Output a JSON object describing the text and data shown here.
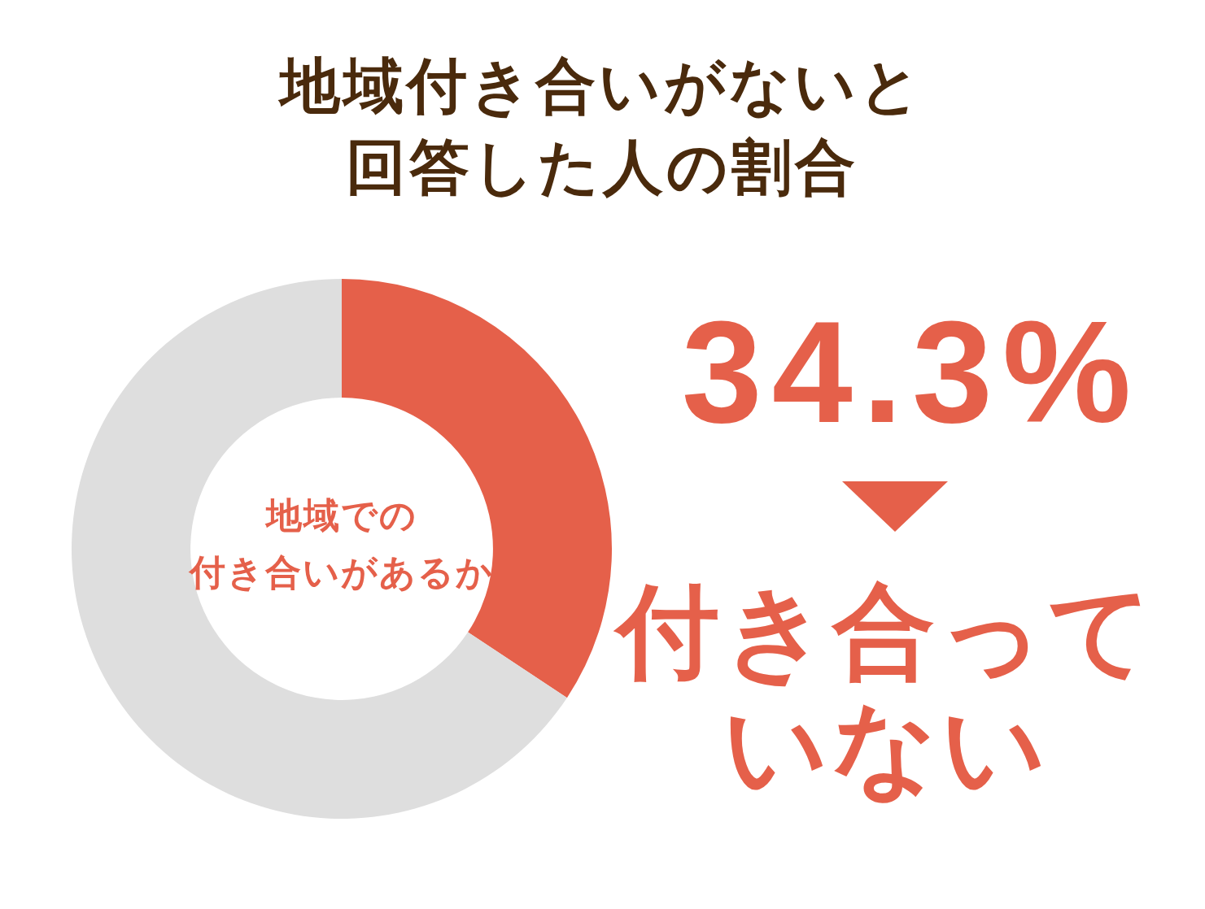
{
  "chart_data": {
    "type": "donut",
    "title": "地域付き合いがないと回答した人の割合",
    "categories": [
      "付き合っていない",
      null
    ],
    "values": [
      34.3,
      65.7
    ],
    "colors": [
      "#e5604a",
      "#dedede"
    ],
    "value_labels": [
      "34.3%",
      null
    ],
    "annotations": [
      "地域での",
      "付き合いがあるか"
    ]
  }
}
